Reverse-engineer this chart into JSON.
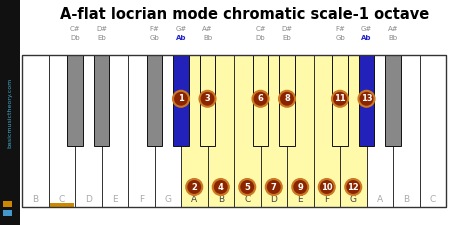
{
  "title": "A-flat locrian mode chromatic scale-1 octave",
  "white_keys": [
    "B",
    "C",
    "D",
    "E",
    "F",
    "G",
    "A",
    "B",
    "C",
    "D",
    "E",
    "F",
    "G",
    "A",
    "B",
    "C"
  ],
  "white_key_count": 16,
  "highlight_white_indices": [
    6,
    7,
    8,
    9,
    10,
    11,
    12
  ],
  "black_after": [
    1,
    2,
    4,
    5,
    6,
    8,
    9,
    11,
    12,
    13
  ],
  "black_labels_sharp": [
    "C#",
    "D#",
    "F#",
    "G#",
    "A#",
    "C#",
    "D#",
    "F#",
    "G#",
    "A#"
  ],
  "black_labels_flat": [
    "Db",
    "Eb",
    "Gb",
    "Ab",
    "Bb",
    "Db",
    "Eb",
    "Gb",
    "Ab",
    "Bb"
  ],
  "highlight_black_indices": [
    3,
    4,
    5,
    6,
    7,
    8
  ],
  "blue_black_indices": [
    3,
    8
  ],
  "white_numbers": {
    "6": 2,
    "7": 4,
    "8": 5,
    "9": 7,
    "10": 9,
    "11": 10,
    "12": 12
  },
  "black_numbers": {
    "3": 1,
    "4": 3,
    "5": 6,
    "6": 8,
    "7": 11,
    "8": 13
  },
  "note_color": "#8B2500",
  "note_border": "#cc7722",
  "yellow_fill": "#FFFAAA",
  "blue_fill": "#2222bb",
  "gray_fill": "#888888",
  "white_fill": "#ffffff",
  "c_underline_color": "#cc8800",
  "sidebar_color": "#111111",
  "sidebar_text_color": "#44aacc",
  "title_color": "#000000",
  "label_gray": "#888888",
  "label_blue": "#2222cc"
}
